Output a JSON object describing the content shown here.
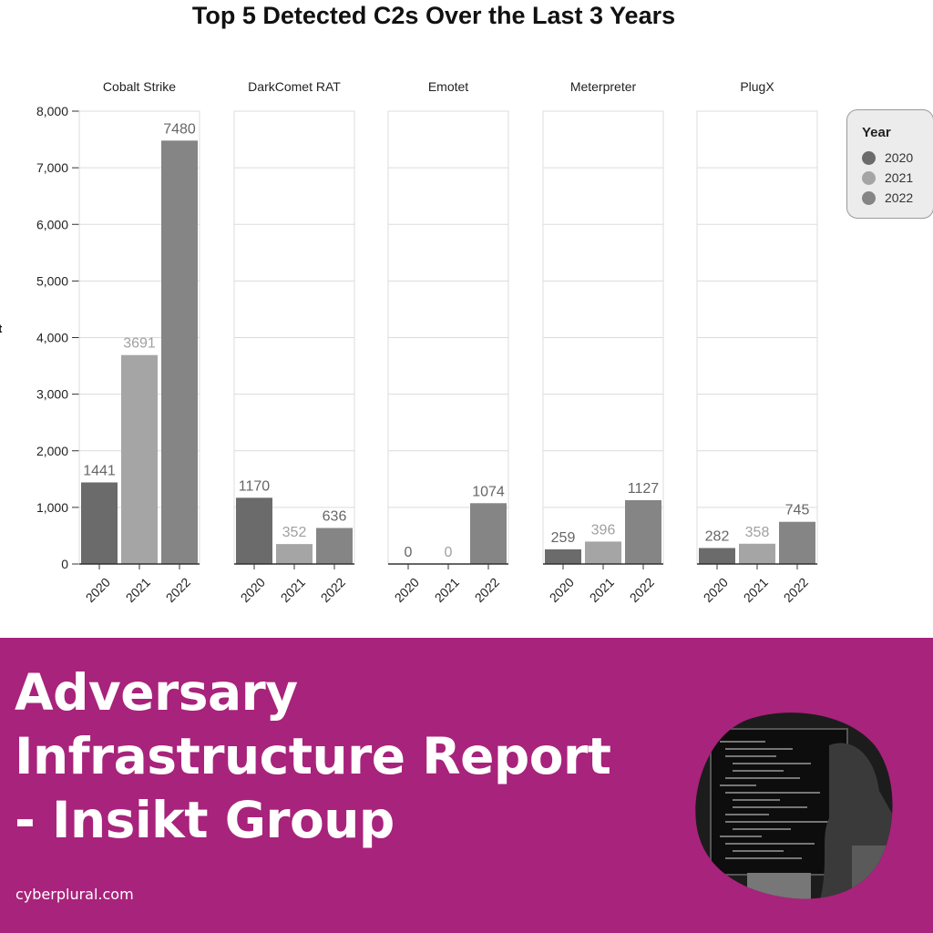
{
  "chart_data": {
    "type": "bar",
    "title": "Top 5 Detected C2s Over the Last 3 Years",
    "ylabel_fragment": "t",
    "ylim": [
      0,
      8000
    ],
    "yticks": [
      "0",
      "1,000",
      "2,000",
      "3,000",
      "4,000",
      "5,000",
      "6,000",
      "7,000",
      "8,000"
    ],
    "grid": "horizontal",
    "legend_placement": "right",
    "legend": {
      "title": "Year",
      "items": [
        {
          "label": "2020",
          "color": "#6b6b6b"
        },
        {
          "label": "2021",
          "color": "#a5a5a5"
        },
        {
          "label": "2022",
          "color": "#858585"
        }
      ]
    },
    "categories": [
      "2020",
      "2021",
      "2022"
    ],
    "panels": [
      {
        "name": "Cobalt Strike",
        "values": [
          1441,
          3691,
          7480
        ]
      },
      {
        "name": "DarkComet RAT",
        "values": [
          1170,
          352,
          636
        ]
      },
      {
        "name": "Emotet",
        "values": [
          0,
          0,
          1074
        ]
      },
      {
        "name": "Meterpreter",
        "values": [
          259,
          396,
          1127
        ]
      },
      {
        "name": "PlugX",
        "values": [
          282,
          358,
          745
        ]
      }
    ]
  },
  "banner": {
    "headline_lines": [
      "Adversary",
      "Infrastructure Report",
      "- Insikt Group"
    ],
    "site": "cyberplural.com",
    "background": "#a8237b"
  },
  "photo": {
    "icon": "code-screen-photo"
  }
}
